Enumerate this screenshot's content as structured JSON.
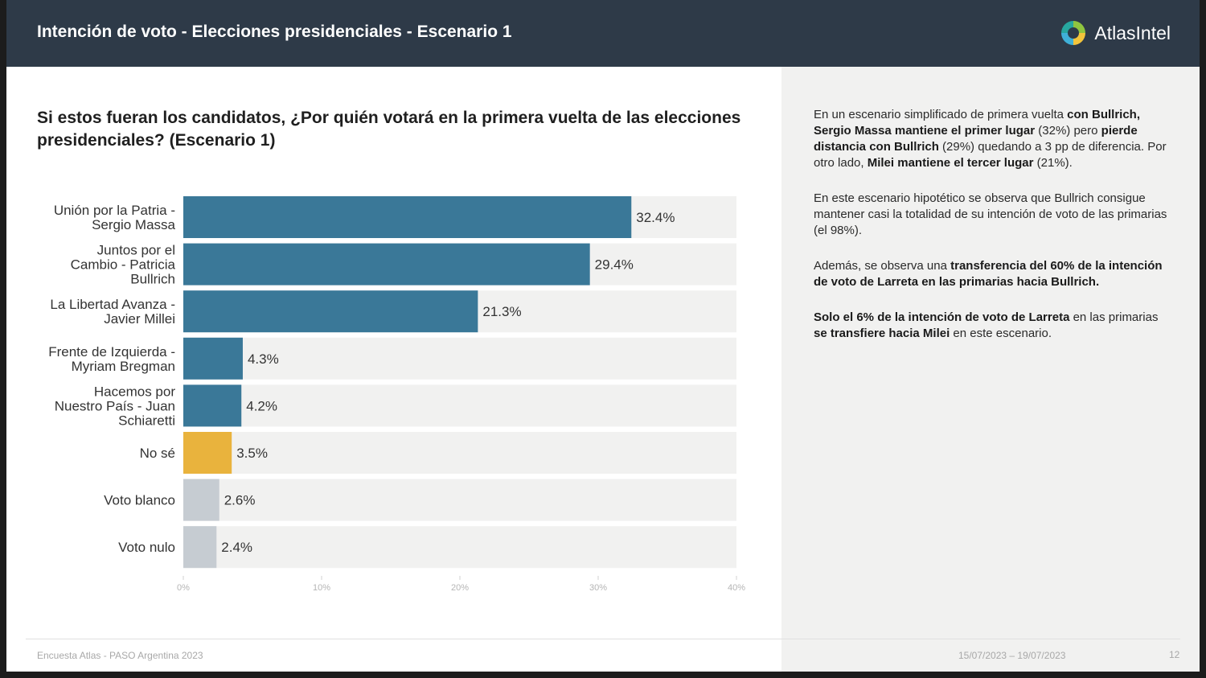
{
  "header": {
    "title": "Intención de voto - Elecciones presidenciales - Escenario 1",
    "logo_text": "AtlasIntel"
  },
  "question": "Si estos fueran los candidatos, ¿Por quién votará en la primera vuelta de las elecciones presidenciales? (Escenario 1)",
  "colors": {
    "header_bg": "#2e3a48",
    "bar_primary": "#3a7898",
    "bar_unsure": "#e9b33d",
    "bar_blank": "#c6ccd2",
    "bar_track": "#f1f1f0"
  },
  "chart_data": {
    "type": "bar",
    "orientation": "horizontal",
    "categories": [
      [
        "Unión por la Patria -",
        "Sergio Massa"
      ],
      [
        "Juntos por el",
        "Cambio - Patricia",
        "Bullrich"
      ],
      [
        "La Libertad Avanza -",
        "Javier Millei"
      ],
      [
        "Frente de Izquierda -",
        "Myriam Bregman"
      ],
      [
        "Hacemos por",
        "Nuestro País - Juan",
        "Schiaretti"
      ],
      [
        "No sé"
      ],
      [
        "Voto blanco"
      ],
      [
        "Voto nulo"
      ]
    ],
    "values": [
      32.4,
      29.4,
      21.3,
      4.3,
      4.2,
      3.5,
      2.6,
      2.4
    ],
    "value_labels": [
      "32.4%",
      "29.4%",
      "21.3%",
      "4.3%",
      "4.2%",
      "3.5%",
      "2.6%",
      "2.4%"
    ],
    "bar_colors": [
      "#3a7898",
      "#3a7898",
      "#3a7898",
      "#3a7898",
      "#3a7898",
      "#e9b33d",
      "#c6ccd2",
      "#c6ccd2"
    ],
    "xlim": [
      0,
      40
    ],
    "xticks": [
      0,
      10,
      20,
      30,
      40
    ],
    "xtick_labels": [
      "0%",
      "10%",
      "20%",
      "30%",
      "40%"
    ],
    "title": "",
    "xlabel": "",
    "ylabel": ""
  },
  "paragraphs": [
    [
      {
        "t": "En un escenario simplificado de primera vuelta ",
        "b": false
      },
      {
        "t": "con Bullrich, Sergio Massa mantiene el primer lugar",
        "b": true
      },
      {
        "t": " (32%) pero ",
        "b": false
      },
      {
        "t": "pierde distancia con Bullrich",
        "b": true
      },
      {
        "t": " (29%) quedando a 3 pp de diferencia. Por otro lado, ",
        "b": false
      },
      {
        "t": "Milei mantiene el tercer lugar",
        "b": true
      },
      {
        "t": " (21%).",
        "b": false
      }
    ],
    [
      {
        "t": "En este escenario hipotético se observa que Bullrich consigue mantener casi la totalidad de su intención de voto de las primarias (el 98%).",
        "b": false
      }
    ],
    [
      {
        "t": "Además, se observa una ",
        "b": false
      },
      {
        "t": "transferencia del 60% de la intención de voto de Larreta en las primarias hacia Bullrich.",
        "b": true
      }
    ],
    [
      {
        "t": "Solo el 6% de la intención de voto de Larreta",
        "b": true
      },
      {
        "t": " en las primarias ",
        "b": false
      },
      {
        "t": "se transfiere hacia Milei",
        "b": true
      },
      {
        "t": " en este escenario.",
        "b": false
      }
    ]
  ],
  "footer": {
    "source": "Encuesta Atlas - PASO Argentina 2023",
    "date_range": "15/07/2023 – 19/07/2023",
    "page_number": "12"
  }
}
